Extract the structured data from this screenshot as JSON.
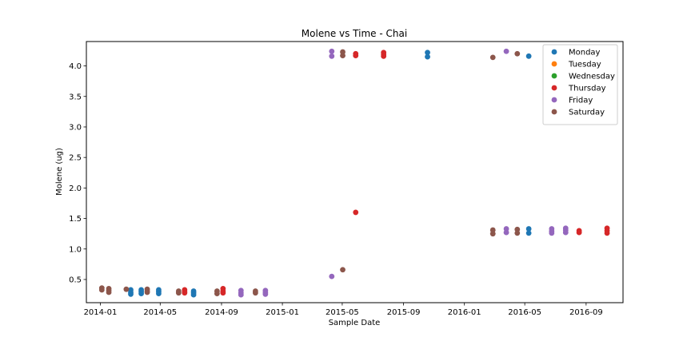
{
  "chart_data": {
    "type": "scatter",
    "title": "Molene vs Time - Chai",
    "xlabel": "Sample Date",
    "ylabel": "Molene (ug)",
    "xlim": [
      "2013-12-04",
      "2016-11-14"
    ],
    "ylim": [
      0.12,
      4.4
    ],
    "x_ticks": [
      {
        "date": "2014-01-01",
        "label": "2014-01"
      },
      {
        "date": "2014-05-01",
        "label": "2014-05"
      },
      {
        "date": "2014-09-01",
        "label": "2014-09"
      },
      {
        "date": "2015-01-01",
        "label": "2015-01"
      },
      {
        "date": "2015-05-01",
        "label": "2015-05"
      },
      {
        "date": "2015-09-01",
        "label": "2015-09"
      },
      {
        "date": "2016-01-01",
        "label": "2016-01"
      },
      {
        "date": "2016-05-01",
        "label": "2016-05"
      },
      {
        "date": "2016-09-01",
        "label": "2016-09"
      }
    ],
    "y_ticks": [
      {
        "value": 0.5,
        "label": "0.5"
      },
      {
        "value": 1.0,
        "label": "1.0"
      },
      {
        "value": 1.5,
        "label": "1.5"
      },
      {
        "value": 2.0,
        "label": "2.0"
      },
      {
        "value": 2.5,
        "label": "2.5"
      },
      {
        "value": 3.0,
        "label": "3.0"
      },
      {
        "value": 3.5,
        "label": "3.5"
      },
      {
        "value": 4.0,
        "label": "4.0"
      }
    ],
    "grid": false,
    "legend_position": "top-right",
    "series": [
      {
        "name": "Monday",
        "color": "#1f77b4",
        "points": [
          {
            "x": "2014-03-03",
            "y": 0.33
          },
          {
            "x": "2014-03-03",
            "y": 0.29
          },
          {
            "x": "2014-03-03",
            "y": 0.26
          },
          {
            "x": "2014-03-24",
            "y": 0.33
          },
          {
            "x": "2014-03-24",
            "y": 0.3
          },
          {
            "x": "2014-03-24",
            "y": 0.27
          },
          {
            "x": "2014-04-28",
            "y": 0.33
          },
          {
            "x": "2014-04-28",
            "y": 0.3
          },
          {
            "x": "2014-04-28",
            "y": 0.27
          },
          {
            "x": "2014-07-07",
            "y": 0.31
          },
          {
            "x": "2014-07-07",
            "y": 0.28
          },
          {
            "x": "2014-07-07",
            "y": 0.25
          },
          {
            "x": "2015-10-19",
            "y": 4.22
          },
          {
            "x": "2015-10-19",
            "y": 4.15
          },
          {
            "x": "2016-05-09",
            "y": 4.16
          },
          {
            "x": "2016-05-09",
            "y": 1.33
          },
          {
            "x": "2016-05-09",
            "y": 1.26
          }
        ]
      },
      {
        "name": "Tuesday",
        "color": "#ff7f0e",
        "points": []
      },
      {
        "name": "Wednesday",
        "color": "#2ca02c",
        "points": []
      },
      {
        "name": "Thursday",
        "color": "#d62728",
        "points": [
          {
            "x": "2014-06-19",
            "y": 0.33
          },
          {
            "x": "2014-06-19",
            "y": 0.3
          },
          {
            "x": "2014-06-19",
            "y": 0.28
          },
          {
            "x": "2014-09-04",
            "y": 0.35
          },
          {
            "x": "2014-09-04",
            "y": 0.31
          },
          {
            "x": "2014-09-04",
            "y": 0.28
          },
          {
            "x": "2015-05-28",
            "y": 4.2
          },
          {
            "x": "2015-05-28",
            "y": 4.17
          },
          {
            "x": "2015-05-28",
            "y": 1.6
          },
          {
            "x": "2015-07-23",
            "y": 4.22
          },
          {
            "x": "2015-07-23",
            "y": 4.19
          },
          {
            "x": "2015-07-23",
            "y": 4.16
          },
          {
            "x": "2016-08-18",
            "y": 1.3
          },
          {
            "x": "2016-08-18",
            "y": 1.27
          },
          {
            "x": "2016-10-13",
            "y": 1.34
          },
          {
            "x": "2016-10-13",
            "y": 1.3
          },
          {
            "x": "2016-10-13",
            "y": 1.26
          }
        ]
      },
      {
        "name": "Friday",
        "color": "#9467bd",
        "points": [
          {
            "x": "2014-10-10",
            "y": 0.32
          },
          {
            "x": "2014-10-10",
            "y": 0.28
          },
          {
            "x": "2014-10-10",
            "y": 0.25
          },
          {
            "x": "2014-11-28",
            "y": 0.32
          },
          {
            "x": "2014-11-28",
            "y": 0.29
          },
          {
            "x": "2014-11-28",
            "y": 0.26
          },
          {
            "x": "2015-04-10",
            "y": 4.24
          },
          {
            "x": "2015-04-10",
            "y": 4.16
          },
          {
            "x": "2015-04-10",
            "y": 0.55
          },
          {
            "x": "2016-03-25",
            "y": 4.24
          },
          {
            "x": "2016-03-25",
            "y": 1.33
          },
          {
            "x": "2016-03-25",
            "y": 1.27
          },
          {
            "x": "2016-06-24",
            "y": 1.33
          },
          {
            "x": "2016-06-24",
            "y": 1.29
          },
          {
            "x": "2016-06-24",
            "y": 1.26
          },
          {
            "x": "2016-07-22",
            "y": 1.34
          },
          {
            "x": "2016-07-22",
            "y": 1.31
          },
          {
            "x": "2016-07-22",
            "y": 1.27
          }
        ]
      },
      {
        "name": "Saturday",
        "color": "#8c564b",
        "points": [
          {
            "x": "2014-01-04",
            "y": 0.36
          },
          {
            "x": "2014-01-04",
            "y": 0.33
          },
          {
            "x": "2014-01-18",
            "y": 0.35
          },
          {
            "x": "2014-01-18",
            "y": 0.32
          },
          {
            "x": "2014-01-18",
            "y": 0.29
          },
          {
            "x": "2014-02-22",
            "y": 0.34
          },
          {
            "x": "2014-04-05",
            "y": 0.34
          },
          {
            "x": "2014-04-05",
            "y": 0.31
          },
          {
            "x": "2014-04-05",
            "y": 0.29
          },
          {
            "x": "2014-06-07",
            "y": 0.31
          },
          {
            "x": "2014-06-07",
            "y": 0.28
          },
          {
            "x": "2014-08-23",
            "y": 0.31
          },
          {
            "x": "2014-08-23",
            "y": 0.27
          },
          {
            "x": "2014-11-08",
            "y": 0.31
          },
          {
            "x": "2014-11-08",
            "y": 0.28
          },
          {
            "x": "2015-05-02",
            "y": 4.23
          },
          {
            "x": "2015-05-02",
            "y": 4.17
          },
          {
            "x": "2015-05-02",
            "y": 0.66
          },
          {
            "x": "2016-02-27",
            "y": 4.14
          },
          {
            "x": "2016-02-27",
            "y": 1.31
          },
          {
            "x": "2016-02-27",
            "y": 1.25
          },
          {
            "x": "2016-04-16",
            "y": 4.2
          },
          {
            "x": "2016-04-16",
            "y": 1.32
          },
          {
            "x": "2016-04-16",
            "y": 1.26
          }
        ]
      }
    ]
  }
}
